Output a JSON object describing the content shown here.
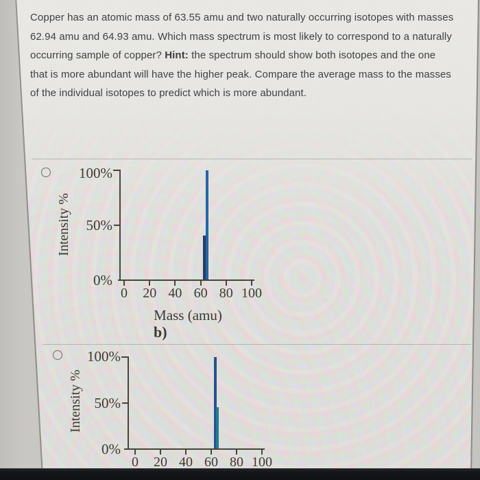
{
  "question": {
    "part1": "Copper has an atomic mass of 63.55 amu and two naturally occurring isotopes with masses 62.94 amu and 64.93 amu. Which mass spectrum is most likely to correspond to a naturally occurring sample of copper? ",
    "hint_label": "Hint:",
    "part2": " the spectrum should show both isotopes and the one that is more abundant will have the higher peak. Compare the average mass to the masses of the individual isotopes to predict which is more abundant."
  },
  "options": [
    {
      "state": "unselected",
      "caption": "b)"
    },
    {
      "state": "unselected",
      "caption": ""
    }
  ],
  "chart_data": [
    {
      "type": "bar",
      "title": "",
      "ylabel": "Intensity %",
      "xlabel": "Mass (amu)",
      "caption": "b)",
      "yticks": [
        "100%",
        "50%",
        "0%"
      ],
      "xticks": [
        0,
        20,
        40,
        60,
        80,
        100
      ],
      "xlim": [
        0,
        105
      ],
      "ylim": [
        0,
        100
      ],
      "grid": false,
      "legend": false,
      "peaks": [
        {
          "mass": 63,
          "intensity": 40,
          "color": "#283d63"
        },
        {
          "mass": 65,
          "intensity": 100,
          "color": "#2565a8"
        }
      ]
    },
    {
      "type": "bar",
      "title": "",
      "ylabel": "Intensity %",
      "xlabel": "",
      "caption": "",
      "yticks": [
        "100%",
        "50%",
        "0%"
      ],
      "xticks": [
        0,
        20,
        40,
        60,
        80,
        100
      ],
      "xlim": [
        0,
        105
      ],
      "ylim": [
        0,
        100
      ],
      "grid": false,
      "legend": false,
      "peaks": [
        {
          "mass": 63,
          "intensity": 100,
          "color": "#27518f"
        },
        {
          "mass": 65,
          "intensity": 45,
          "color": "#1f7d96"
        }
      ]
    }
  ],
  "colors": {
    "axis": "#47453a",
    "chart_text": "#3b3a31",
    "question_text": "#3f4144",
    "card_bg": "#e7e6e2",
    "page_bg": "#c6c5c1",
    "divider": "#73736e",
    "bottom_bezel": "#14161a"
  }
}
